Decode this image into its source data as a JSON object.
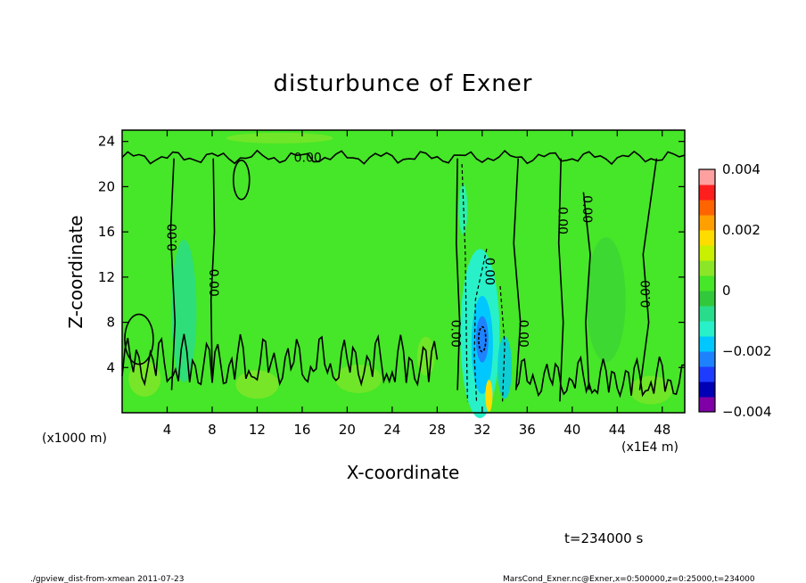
{
  "chart_data": {
    "type": "heatmap",
    "title": "disturbunce of Exner",
    "xlabel": "X-coordinate",
    "ylabel": "Z-coordinate",
    "x_unit": "(x1E4 m)",
    "y_unit": "(x1000 m)",
    "xlim": [
      0,
      50
    ],
    "ylim": [
      0,
      25
    ],
    "x_ticks": [
      4,
      8,
      12,
      16,
      20,
      24,
      28,
      32,
      36,
      40,
      44,
      48
    ],
    "y_ticks": [
      4,
      8,
      12,
      16,
      20,
      24
    ],
    "contour_labels": [
      {
        "text": "0.00",
        "x": 16.5,
        "y": 22.5,
        "rotate": 0
      },
      {
        "text": "0.00",
        "x": 4.5,
        "y": 15.5,
        "rotate": -90
      },
      {
        "text": "0.00",
        "x": 8.1,
        "y": 11.5,
        "rotate": 90
      },
      {
        "text": "0.00",
        "x": 29.6,
        "y": 7.0,
        "rotate": 90
      },
      {
        "text": "0.00",
        "x": 32.6,
        "y": 12.5,
        "rotate": 90
      },
      {
        "text": "0.00",
        "x": 35.6,
        "y": 7.0,
        "rotate": 90
      },
      {
        "text": "0.00",
        "x": 39.1,
        "y": 17.0,
        "rotate": 90
      },
      {
        "text": "0.00",
        "x": 41.3,
        "y": 18.0,
        "rotate": 90
      },
      {
        "text": "0.00",
        "x": 46.6,
        "y": 10.5,
        "rotate": -90
      }
    ],
    "colorbar": {
      "min": -0.004,
      "max": 0.004,
      "tick_labels": [
        "0.004",
        "0.002",
        "0",
        "−0.002",
        "−0.004"
      ],
      "tick_values": [
        0.004,
        0.002,
        0,
        -0.002,
        -0.004
      ],
      "colors": [
        "#7f00a6",
        "#0000b4",
        "#1e3cff",
        "#1e82ff",
        "#00c8ff",
        "#28f0c8",
        "#28dc8c",
        "#32c83c",
        "#46e628",
        "#8ce628",
        "#c8f000",
        "#ffdc00",
        "#ffa000",
        "#ff6400",
        "#ff1e1e",
        "#ffa0a0"
      ]
    },
    "time": "t=234000 s",
    "footer_left": "./gpview_dist-from-xmean  2011-07-23",
    "footer_right": "MarsCond_Exner.nc@Exner,x=0:500000,z=0:25000,t=234000"
  }
}
